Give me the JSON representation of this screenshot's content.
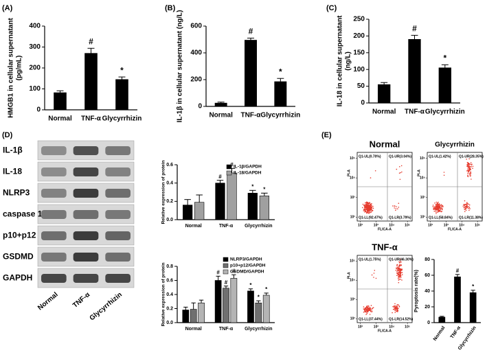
{
  "chart_data": [
    {
      "type": "bar",
      "panel_label": "(A)",
      "ylabel": [
        "HMGB1 in cellular supernatant",
        "(pg/mL)"
      ],
      "categories": [
        "Normal",
        "TNF-α",
        "Glycyrrhizin"
      ],
      "values": [
        82,
        270,
        145
      ],
      "errors": [
        9,
        24,
        12
      ],
      "annotations": [
        null,
        "#",
        "*"
      ],
      "color": "#000000",
      "ylim": [
        0,
        400
      ],
      "yticks": [
        0,
        100,
        200,
        300,
        400
      ]
    },
    {
      "type": "bar",
      "panel_label": "(B)",
      "ylabel": [
        "IL-1β in cellular supernatant (ng/L)"
      ],
      "categories": [
        "Normal",
        "TNF-α",
        "Glycyrrhizin"
      ],
      "values": [
        25,
        495,
        185
      ],
      "errors": [
        7,
        15,
        24
      ],
      "annotations": [
        null,
        "#",
        "*"
      ],
      "color": "#000000",
      "ylim": [
        0,
        600
      ],
      "yticks": [
        0,
        200,
        400,
        600
      ]
    },
    {
      "type": "bar",
      "panel_label": "(C)",
      "ylabel": [
        "IL-18 in cellular supernatant",
        "(ng/L)"
      ],
      "categories": [
        "Normal",
        "TNF-α",
        "Glycyrrhizin"
      ],
      "values": [
        55,
        190,
        105
      ],
      "errors": [
        6,
        12,
        9
      ],
      "annotations": [
        null,
        "#",
        "*"
      ],
      "color": "#000000",
      "ylim": [
        0,
        250
      ],
      "yticks": [
        0,
        50,
        100,
        150,
        200,
        250
      ]
    },
    {
      "type": "bar",
      "ylabel": [
        "Relative expression of protein"
      ],
      "categories": [
        "Normal",
        "TNF-α",
        "Glycyrrhizin"
      ],
      "series": [
        {
          "name": "IL-1β/GAPDH",
          "color": "#000000",
          "values": [
            0.16,
            0.4,
            0.29
          ],
          "errors": [
            0.06,
            0.03,
            0.03
          ],
          "annotations": [
            null,
            "#",
            "*"
          ]
        },
        {
          "name": "IL-18/GAPDH",
          "color": "#a0a0a0",
          "values": [
            0.19,
            0.51,
            0.26
          ],
          "errors": [
            0.08,
            0.05,
            0.03
          ],
          "annotations": [
            null,
            "#",
            "*"
          ]
        }
      ],
      "ylim": [
        0,
        0.6
      ],
      "yticks": [
        {
          "value": 0,
          "label": "0.0"
        },
        0.2,
        0.4,
        0.6
      ],
      "legend": "top-right"
    },
    {
      "type": "bar",
      "ylabel": [
        "Relative expression of protein"
      ],
      "categories": [
        "Normal",
        "TNF-α",
        "Glycyrrhizin"
      ],
      "series": [
        {
          "name": "NLRP3/GAPDH",
          "color": "#000000",
          "values": [
            0.18,
            0.6,
            0.45
          ],
          "errors": [
            0.04,
            0.06,
            0.03
          ],
          "annotations": [
            null,
            "#",
            "*"
          ]
        },
        {
          "name": "p10+p12/GAPDH",
          "color": "#707070",
          "values": [
            0.19,
            0.49,
            0.28
          ],
          "errors": [
            0.09,
            0.03,
            0.03
          ],
          "annotations": [
            null,
            "#",
            "*"
          ]
        },
        {
          "name": "GSDMD/GAPDH",
          "color": "#b4b4b4",
          "values": [
            0.28,
            0.63,
            0.39
          ],
          "errors": [
            0.04,
            0.05,
            0.03
          ],
          "annotations": [
            null,
            "#",
            "*"
          ]
        }
      ],
      "ylim": [
        0,
        0.8
      ],
      "yticks": [
        {
          "value": 0,
          "label": "0.0"
        },
        0.2,
        0.4,
        0.6,
        0.8
      ],
      "legend": "top-right"
    },
    {
      "type": "bar",
      "ylabel": [
        "Pyroptosis rate(%)"
      ],
      "categories": [
        "Normal",
        "TNF-α",
        "Glycyrrhizin"
      ],
      "values": [
        7,
        58,
        38
      ],
      "errors": [
        1,
        3,
        3
      ],
      "annotations": [
        null,
        "#",
        "*"
      ],
      "color": "#000000",
      "ylim": [
        0,
        80
      ],
      "yticks": [
        0,
        20,
        40,
        60,
        80
      ]
    }
  ],
  "blot": {
    "panel_label": "(D)",
    "rows": [
      "IL-1β",
      "IL-18",
      "NLRP3",
      "caspase 1",
      "p10+p12",
      "GSDMD",
      "GAPDH"
    ],
    "lanes": [
      "Normal",
      "TNF-α",
      "Glycyrrhizin"
    ]
  },
  "flow": {
    "panel_label": "(E)",
    "xlabel": "FLICA-A",
    "ylabel": "PI-A",
    "xlim": [
      1.8,
      5.3
    ],
    "ylim": [
      1.8,
      5.3
    ],
    "ticks": [
      {
        "value": 2,
        "label": "10²"
      },
      {
        "value": 3,
        "label": "10³"
      },
      {
        "value": 4,
        "label": "10⁴"
      },
      {
        "value": 5,
        "label": "10⁵"
      }
    ],
    "plots": [
      {
        "title": "Normal",
        "quadrants": [
          "Q1-UL(0.70%)",
          "Q1-UR(3.04%)",
          "Q1-LL(92.47%)",
          "Q1-LR(3.79%)"
        ]
      },
      {
        "title": "Glycyrrhizin",
        "quadrants": [
          "Q1-UL(1.42%)",
          "Q1-UR(28.35%)",
          "Q1-LL(58.84%)",
          "Q1-LR(11.38%)"
        ]
      },
      {
        "title": "TNF-α",
        "quadrants": [
          "Q1-UL(1.75%)",
          "Q1-UR(46.30%)",
          "Q1-LL(37.44%)",
          "Q1-LR(14.52%)"
        ]
      }
    ]
  }
}
